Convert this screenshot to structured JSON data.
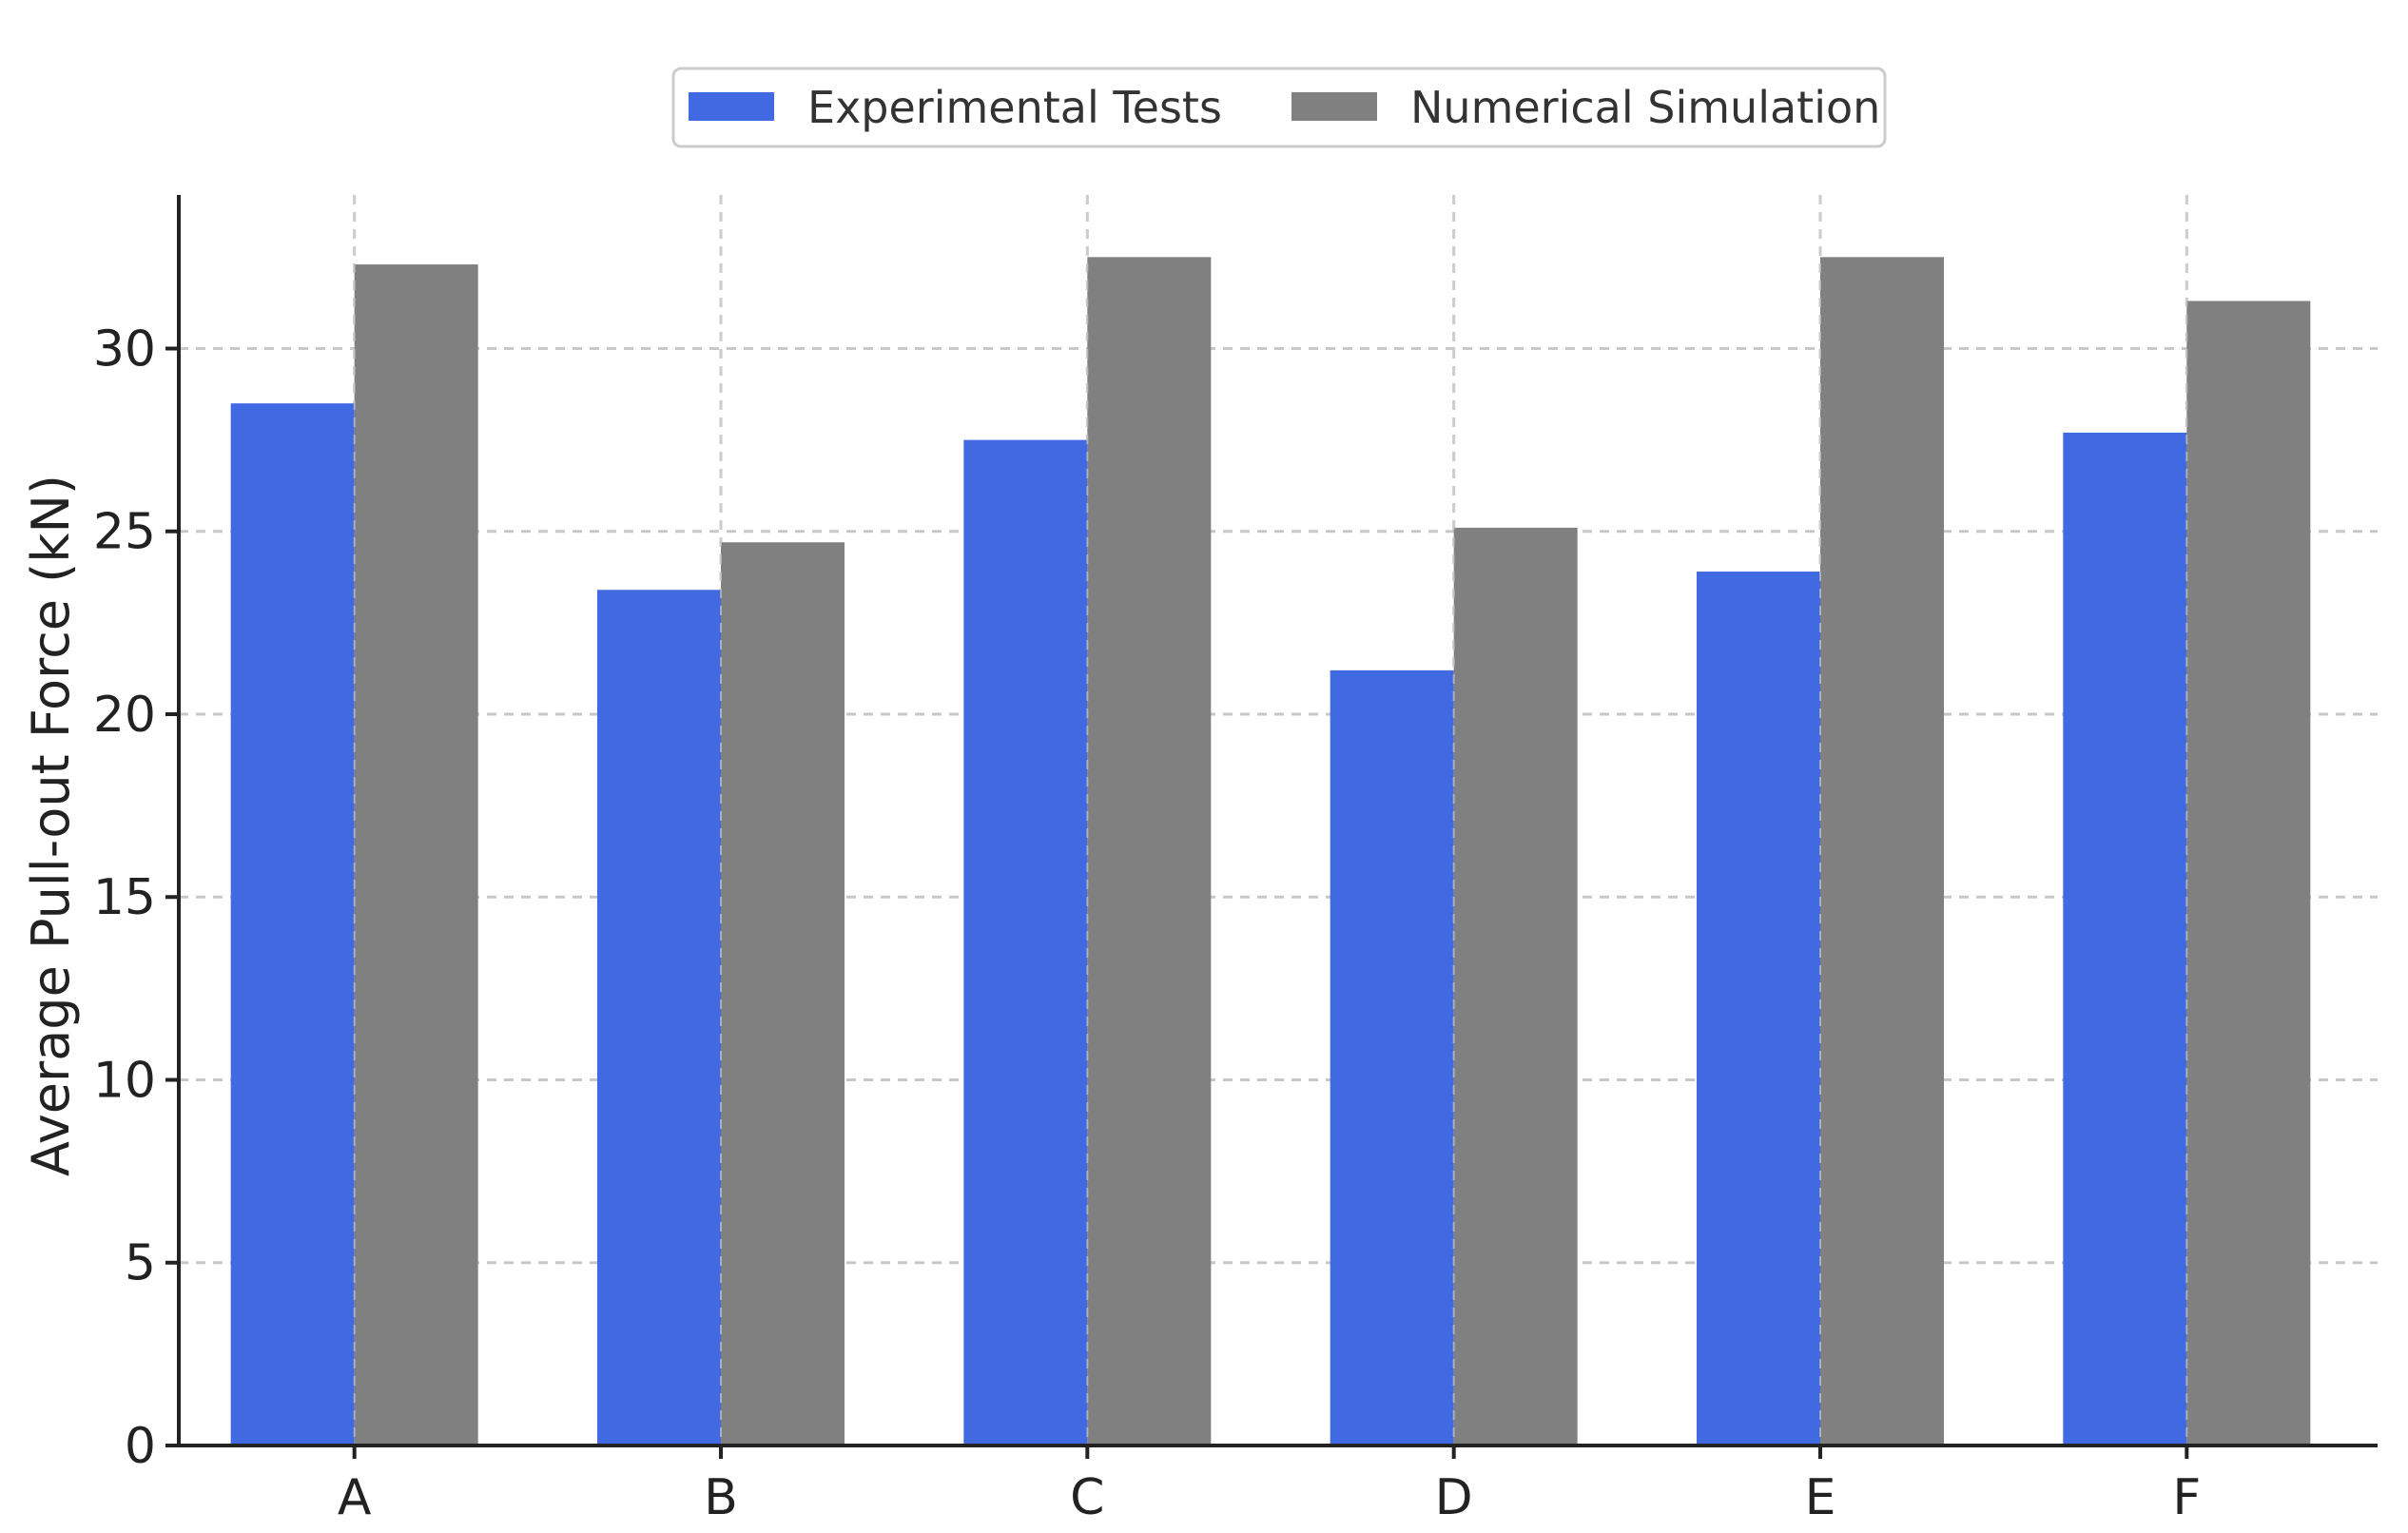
{
  "chart_data": {
    "type": "bar",
    "title": "",
    "xlabel": "",
    "ylabel": "Average Pull-out Force (kN)",
    "categories": [
      "A",
      "B",
      "C",
      "D",
      "E",
      "F"
    ],
    "series": [
      {
        "name": "Experimental Tests",
        "color": "#4169E1",
        "values": [
          28.5,
          23.4,
          27.5,
          21.2,
          23.9,
          27.7
        ]
      },
      {
        "name": "Numerical Simulation",
        "color": "#808080",
        "values": [
          32.3,
          24.7,
          32.5,
          25.1,
          32.5,
          31.3
        ]
      }
    ],
    "ylim": [
      0,
      34.2
    ],
    "yticks": [
      0,
      5,
      10,
      15,
      20,
      25,
      30
    ],
    "grid": true,
    "legend_position": "top-center"
  }
}
